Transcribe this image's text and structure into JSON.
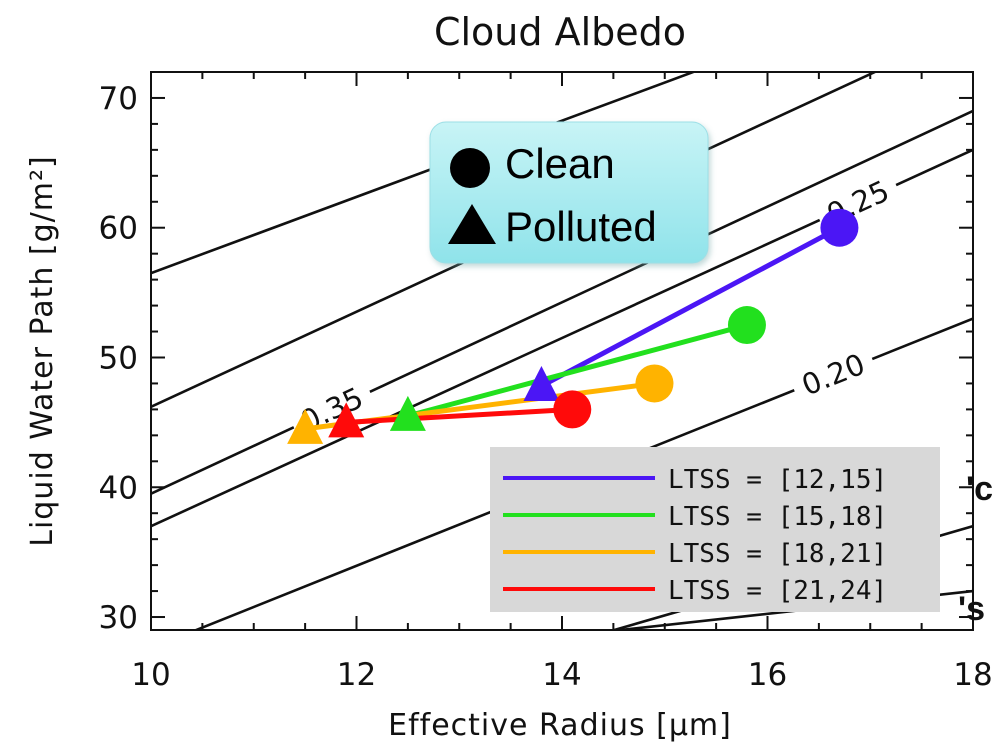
{
  "chart_data": {
    "type": "line",
    "title": "Cloud Albedo",
    "xlabel": "Effective Radius [μm]",
    "ylabel": "Liquid Water Path [g/m²]",
    "xlim": [
      10,
      18
    ],
    "ylim": [
      29,
      72
    ],
    "x_ticks": [
      "10",
      "12",
      "14",
      "16",
      "18"
    ],
    "y_ticks": [
      "30",
      "40",
      "50",
      "60",
      "70"
    ],
    "grid": false,
    "contours": [
      {
        "label": "0.35",
        "points": [
          [
            10,
            39.5
          ],
          [
            18,
            69.0
          ]
        ]
      },
      {
        "label": "",
        "points": [
          [
            10,
            46.2
          ],
          [
            18,
            75.5
          ]
        ]
      },
      {
        "label": "0.25",
        "points": [
          [
            10,
            37.0
          ],
          [
            18,
            66.0
          ]
        ]
      },
      {
        "label": "0.20",
        "points": [
          [
            10,
            27.6
          ],
          [
            18,
            53.0
          ]
        ]
      },
      {
        "label": "",
        "points": [
          [
            13.2,
            26.0
          ],
          [
            18,
            37.0
          ]
        ]
      },
      {
        "label": "",
        "points": [
          [
            10,
            56.5
          ],
          [
            18,
            80.0
          ]
        ]
      },
      {
        "label": "",
        "points": [
          [
            10,
            25.0
          ],
          [
            18,
            32.0
          ]
        ]
      }
    ],
    "marker_box": {
      "clean_label": "Clean",
      "polluted_label": "Polluted"
    },
    "series": [
      {
        "name": "LTSS = [12,15]",
        "color": "#4b16f5",
        "polluted": [
          13.8,
          47.8
        ],
        "clean": [
          16.7,
          60.0
        ]
      },
      {
        "name": "LTSS = [15,18]",
        "color": "#22e01e",
        "polluted": [
          12.5,
          45.5
        ],
        "clean": [
          15.8,
          52.5
        ]
      },
      {
        "name": "LTSS = [18,21]",
        "color": "#ffb300",
        "polluted": [
          11.5,
          44.5
        ],
        "clean": [
          14.9,
          48.0
        ]
      },
      {
        "name": "LTSS = [21,24]",
        "color": "#ff0a0a",
        "polluted": [
          11.9,
          45.0
        ],
        "clean": [
          14.1,
          46.0
        ]
      }
    ],
    "legend_position": "bottom-right"
  },
  "edge_text": {
    "right_top": "'c",
    "right_bottom": "'s"
  }
}
